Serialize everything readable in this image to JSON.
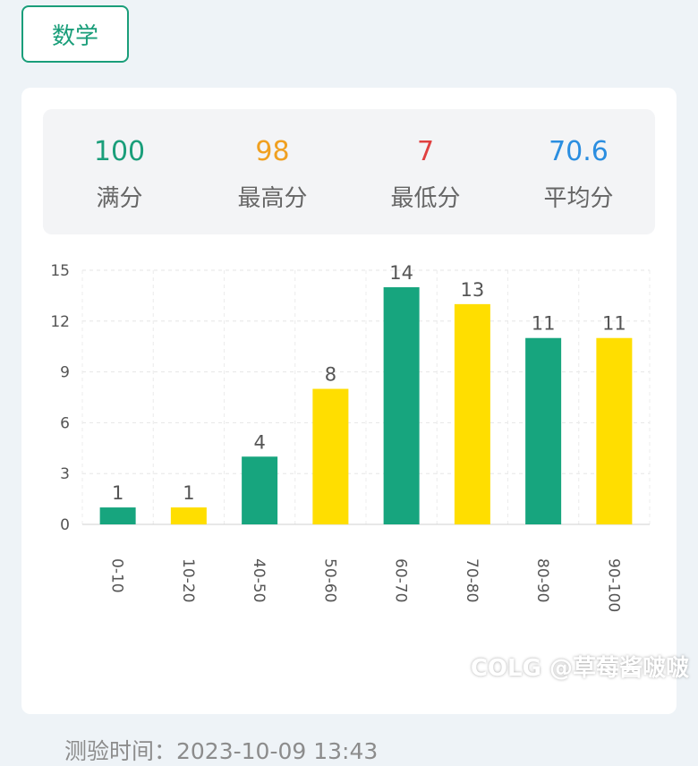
{
  "subject_tab": {
    "label": "数学"
  },
  "stats": [
    {
      "value": "100",
      "label": "满分",
      "color": "#1a9e7a"
    },
    {
      "value": "98",
      "label": "最高分",
      "color": "#f0a020"
    },
    {
      "value": "7",
      "label": "最低分",
      "color": "#e04040"
    },
    {
      "value": "70.6",
      "label": "平均分",
      "color": "#2b8ee0"
    }
  ],
  "chart_data": {
    "type": "bar",
    "categories": [
      "0-10",
      "10-20",
      "40-50",
      "50-60",
      "60-70",
      "70-80",
      "80-90",
      "90-100"
    ],
    "values": [
      1,
      1,
      4,
      8,
      14,
      13,
      11,
      11
    ],
    "ylim": [
      0,
      15
    ],
    "yticks": [
      0,
      3,
      6,
      9,
      12,
      15
    ],
    "grid": true,
    "bar_colors": [
      "#17a57e",
      "#ffde00"
    ]
  },
  "footer": {
    "time": "测验时间：2023-10-09 13:43"
  },
  "watermark": "COLG @草莓酱啵啵"
}
